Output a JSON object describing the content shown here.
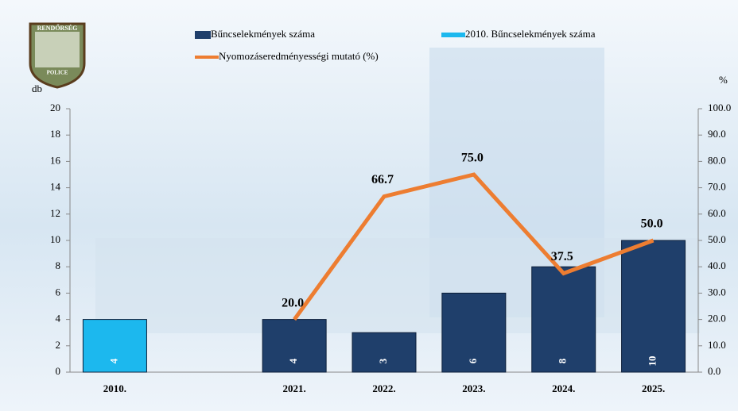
{
  "logo": {
    "top": "RENDŐRSÉG",
    "bottom": "POLICE"
  },
  "chart_data": {
    "type": "bar",
    "categories": [
      "2010.",
      null,
      "2021.",
      "2022.",
      "2023.",
      "2024.",
      "2025."
    ],
    "series": [
      {
        "name": "Bűncselekmények száma",
        "type": "bar",
        "color": "#1f3f6b",
        "values": [
          null,
          null,
          4,
          3,
          6,
          8,
          10
        ]
      },
      {
        "name": "2010. Bűncselekmények száma",
        "type": "bar",
        "color": "#1cb8ee",
        "values": [
          4,
          null,
          null,
          null,
          null,
          null,
          null
        ]
      },
      {
        "name": "Nyomozáseredményességi mutató (%)",
        "type": "line",
        "axis": "y2",
        "color": "#ed7d31",
        "values": [
          null,
          null,
          20,
          66.7,
          75,
          37.5,
          50
        ],
        "value_labels": [
          null,
          null,
          "20.0",
          "66.7",
          "75.0",
          "37.5",
          "50.0"
        ]
      }
    ],
    "y_label": "db",
    "y2_label": "%",
    "ylim": [
      0,
      20
    ],
    "yticks": [
      0,
      2,
      4,
      6,
      8,
      10,
      12,
      14,
      16,
      18,
      20
    ],
    "y2lim": [
      0,
      100
    ],
    "y2ticks": [
      {
        "value": 0,
        "label": "0.0"
      },
      {
        "value": 10,
        "label": "10.0"
      },
      {
        "value": 20,
        "label": "20.0"
      },
      {
        "value": 30,
        "label": "30.0"
      },
      {
        "value": 40,
        "label": "40.0"
      },
      {
        "value": 50,
        "label": "50.0"
      },
      {
        "value": 60,
        "label": "60.0"
      },
      {
        "value": 70,
        "label": "70.0"
      },
      {
        "value": 80,
        "label": "80.0"
      },
      {
        "value": 90,
        "label": "90.0"
      },
      {
        "value": 100,
        "label": "100.0"
      }
    ]
  }
}
